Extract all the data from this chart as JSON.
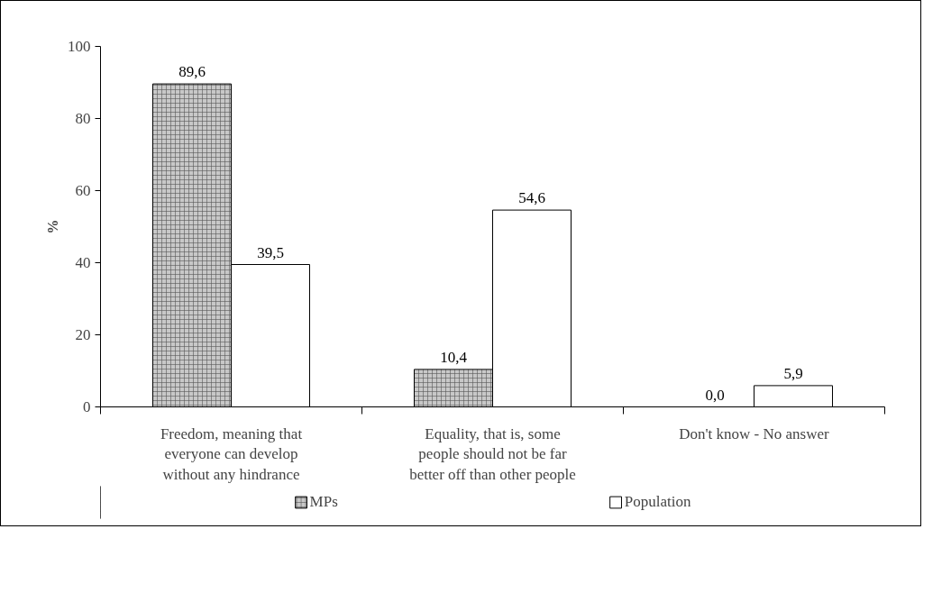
{
  "chart_data": {
    "type": "bar",
    "ylabel": "%",
    "categories": [
      "Freedom, meaning that\neveryone can develop\nwithout any hindrance",
      "Equality, that is, some\npeople should not be far\nbetter off than other people",
      "Don't know - No answer"
    ],
    "series": [
      {
        "name": "MPs",
        "color": "#c8c8c8",
        "values": [
          89.6,
          10.4,
          0.0
        ],
        "value_labels": [
          "89,6",
          "10,4",
          "0,0"
        ]
      },
      {
        "name": "Population",
        "color": "#ffffff",
        "values": [
          39.5,
          54.6,
          5.9
        ],
        "value_labels": [
          "39,5",
          "54,6",
          "5,9"
        ]
      }
    ],
    "ylim": [
      0,
      100
    ],
    "yticks": [
      0,
      20,
      40,
      60,
      80,
      100
    ],
    "grid": false,
    "legend": "bottom"
  }
}
